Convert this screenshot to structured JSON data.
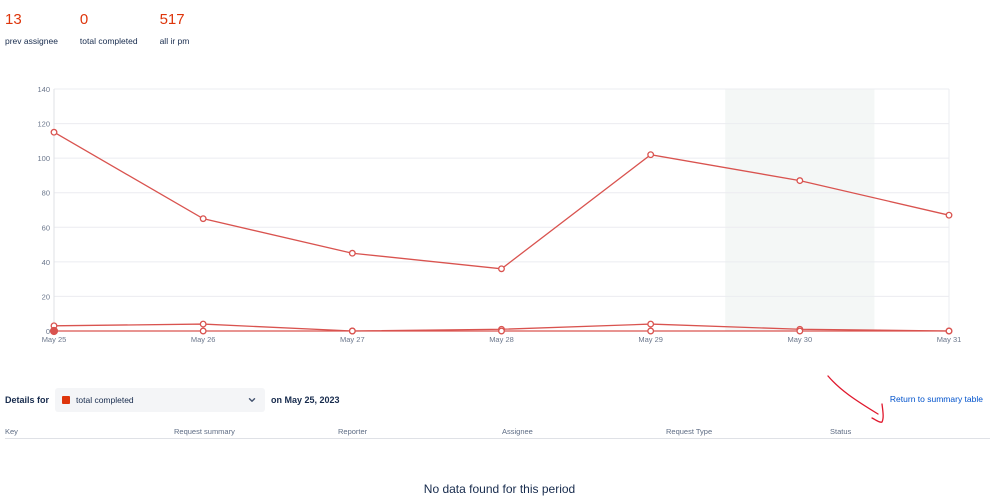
{
  "stats": [
    {
      "value": "13",
      "label": "prev assignee"
    },
    {
      "value": "0",
      "label": "total completed"
    },
    {
      "value": "517",
      "label": "all ir pm"
    }
  ],
  "chart_data": {
    "type": "line",
    "categories": [
      "May 25",
      "May 26",
      "May 27",
      "May 28",
      "May 29",
      "May 30",
      "May 31"
    ],
    "series": [
      {
        "values": [
          115,
          65,
          45,
          36,
          102,
          87,
          67
        ]
      },
      {
        "values": [
          3,
          4,
          0,
          1,
          4,
          1,
          0
        ]
      },
      {
        "values": [
          0,
          0,
          0,
          0,
          0,
          0,
          0
        ]
      }
    ],
    "ylim": [
      0,
      140
    ],
    "yticks": [
      0,
      20,
      40,
      60,
      80,
      100,
      120,
      140
    ],
    "grid": true,
    "highlighted_category": "May 30",
    "selected_category": "May 25",
    "color": "#d9534f"
  },
  "details": {
    "label": "Details for",
    "selected": "total completed",
    "suffix": "on May 25, 2023",
    "return_link": "Return to summary table"
  },
  "table": {
    "columns": [
      "Key",
      "Request summary",
      "Reporter",
      "Assignee",
      "Request Type",
      "Status"
    ]
  },
  "empty_message": "No data found for this period",
  "colors": {
    "accent": "#de350b",
    "link": "#0052cc"
  }
}
